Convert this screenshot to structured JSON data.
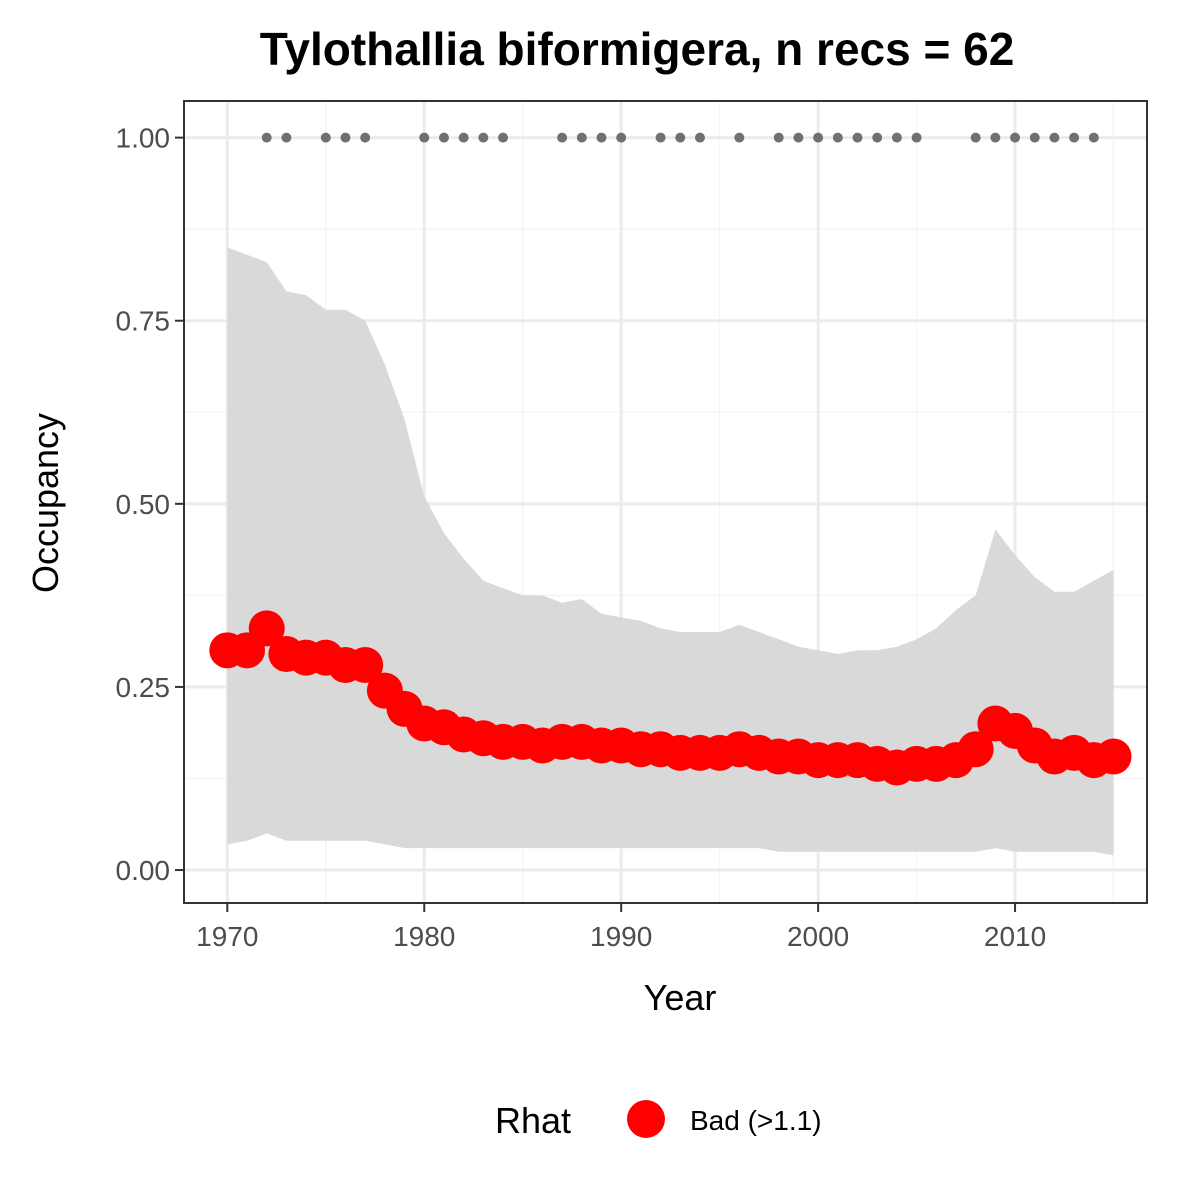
{
  "chart_data": {
    "type": "line",
    "title": "Tylothallia biformigera, n recs = 62",
    "xlabel": "Year",
    "ylabel": "Occupancy",
    "xlim": [
      1967.8,
      1971.0
    ],
    "xlim_full": [
      1967.8,
      2016.7
    ],
    "ylim": [
      -0.045,
      1.05
    ],
    "x_ticks": [
      1970,
      1980,
      1990,
      2000,
      2010
    ],
    "x_tick_labels": [
      "1970",
      "1980",
      "1990",
      "2000",
      "2010"
    ],
    "y_ticks": [
      0,
      0.25,
      0.5,
      0.75,
      1.0
    ],
    "y_tick_labels": [
      "0.00",
      "0.25",
      "0.50",
      "0.75",
      "1.00"
    ],
    "grid": true,
    "legend": {
      "position": "bottom",
      "title": "Rhat",
      "entries": [
        {
          "label": "Bad (>1.1)",
          "color": "#ff0000"
        }
      ]
    },
    "colors": {
      "line": "#ff0000",
      "ribbon": "#d9d9d9",
      "record_dots": "#707070",
      "grid_major": "#ebebeb",
      "grid_minor": "#f5f5f5",
      "panel_border": "#333333",
      "tick_label": "#4d4d4d"
    },
    "series": [
      {
        "name": "Bad (>1.1)",
        "x": [
          1970,
          1971,
          1972,
          1973,
          1974,
          1975,
          1976,
          1977,
          1978,
          1979,
          1980,
          1981,
          1982,
          1983,
          1984,
          1985,
          1986,
          1987,
          1988,
          1989,
          1990,
          1991,
          1992,
          1993,
          1994,
          1995,
          1996,
          1997,
          1998,
          1999,
          2000,
          2001,
          2002,
          2003,
          2004,
          2005,
          2006,
          2007,
          2008,
          2009,
          2010,
          2011,
          2012,
          2013,
          2014,
          2015
        ],
        "values": [
          0.3,
          0.3,
          0.33,
          0.295,
          0.29,
          0.29,
          0.28,
          0.28,
          0.245,
          0.22,
          0.2,
          0.195,
          0.185,
          0.18,
          0.175,
          0.175,
          0.17,
          0.175,
          0.175,
          0.17,
          0.17,
          0.165,
          0.165,
          0.16,
          0.16,
          0.16,
          0.165,
          0.16,
          0.155,
          0.155,
          0.15,
          0.15,
          0.15,
          0.145,
          0.14,
          0.145,
          0.145,
          0.15,
          0.165,
          0.2,
          0.19,
          0.17,
          0.155,
          0.16,
          0.15,
          0.155
        ],
        "lower": [
          0.035,
          0.04,
          0.05,
          0.04,
          0.04,
          0.04,
          0.04,
          0.04,
          0.035,
          0.03,
          0.03,
          0.03,
          0.03,
          0.03,
          0.03,
          0.03,
          0.03,
          0.03,
          0.03,
          0.03,
          0.03,
          0.03,
          0.03,
          0.03,
          0.03,
          0.03,
          0.03,
          0.03,
          0.025,
          0.025,
          0.025,
          0.025,
          0.025,
          0.025,
          0.025,
          0.025,
          0.025,
          0.025,
          0.025,
          0.03,
          0.025,
          0.025,
          0.025,
          0.025,
          0.025,
          0.02
        ],
        "upper": [
          0.85,
          0.84,
          0.83,
          0.79,
          0.785,
          0.765,
          0.765,
          0.75,
          0.69,
          0.615,
          0.51,
          0.46,
          0.425,
          0.395,
          0.385,
          0.375,
          0.375,
          0.365,
          0.37,
          0.35,
          0.345,
          0.34,
          0.33,
          0.325,
          0.325,
          0.325,
          0.335,
          0.325,
          0.315,
          0.305,
          0.3,
          0.295,
          0.3,
          0.3,
          0.305,
          0.315,
          0.33,
          0.355,
          0.375,
          0.465,
          0.43,
          0.4,
          0.38,
          0.38,
          0.395,
          0.41
        ]
      }
    ],
    "record_years": [
      1972,
      1973,
      1975,
      1976,
      1977,
      1980,
      1981,
      1982,
      1983,
      1984,
      1987,
      1988,
      1989,
      1990,
      1992,
      1993,
      1994,
      1996,
      1998,
      1999,
      2000,
      2001,
      2002,
      2003,
      2004,
      2005,
      2008,
      2009,
      2010,
      2011,
      2012,
      2013,
      2014
    ],
    "record_value": 1.0
  }
}
